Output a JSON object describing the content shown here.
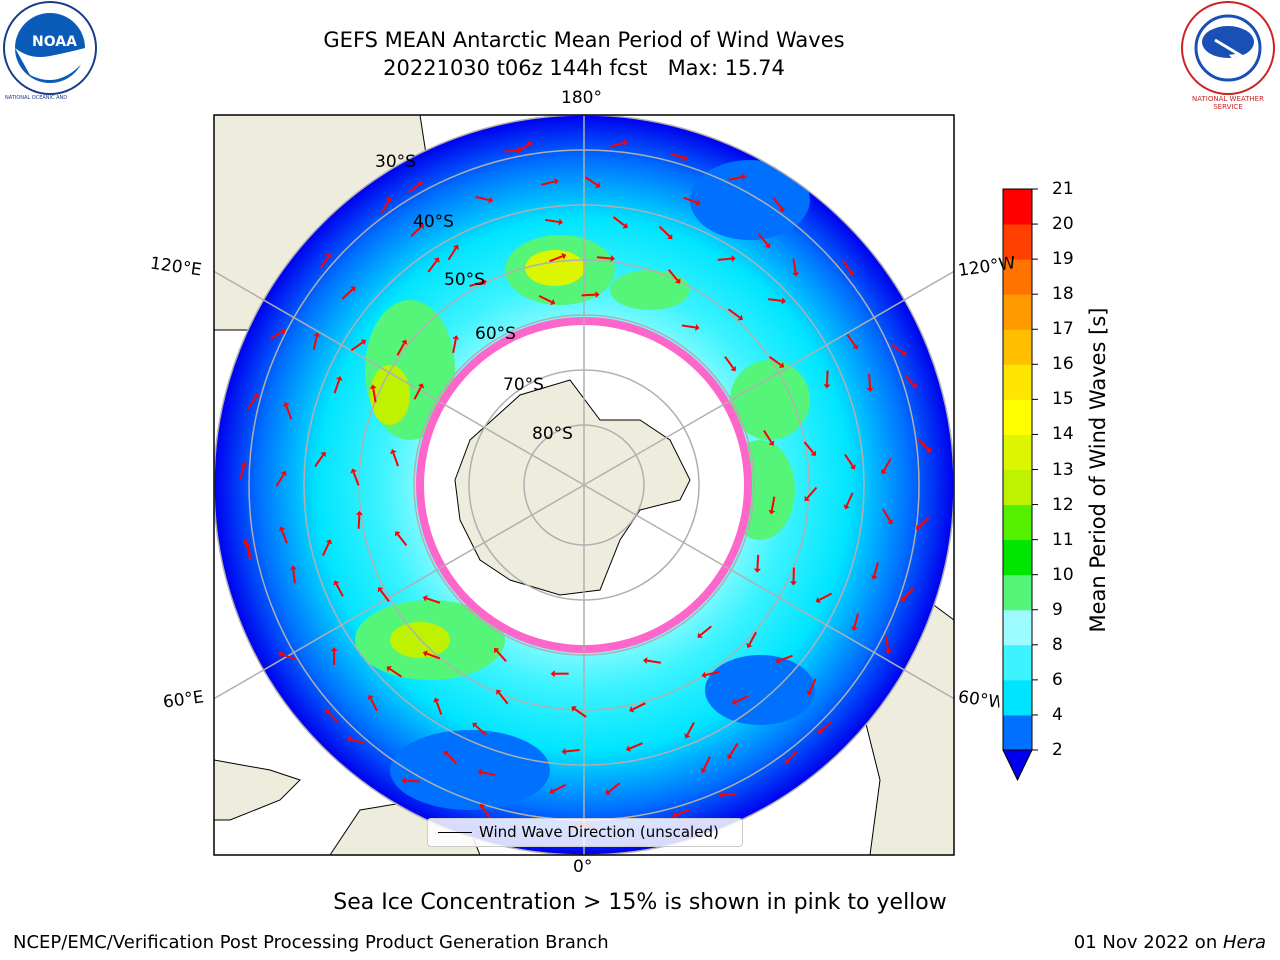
{
  "header": {
    "title_line1": "GEFS MEAN Antarctic Mean Period of Wind Waves",
    "title_line2": "20221030 t06z 144h fcst   Max: 15.74"
  },
  "logos": {
    "noaa_text": "NOAA",
    "noaa_ring_text": "NATIONAL OCEANIC AND ATMOSPHERIC ADMINISTRATION · U.S. DEPARTMENT OF COMMERCE",
    "nws_ring_text": "NATIONAL WEATHER SERVICE"
  },
  "map": {
    "lon_labels": {
      "top": "180°",
      "bottom": "0°",
      "upper_left": "120°E",
      "upper_right": "120°W",
      "lower_left": "60°E",
      "lower_right": "60°W"
    },
    "lat_labels": [
      "30°S",
      "40°S",
      "50°S",
      "60°S",
      "70°S",
      "80°S"
    ],
    "legend_label": "Wind Wave Direction (unscaled)",
    "colors": {
      "land": "#eeecdc",
      "ice_interior": "#ffffff",
      "ice_edge": "#ff33cc",
      "arrow": "#ff0000",
      "grid": "#b0b0b0"
    }
  },
  "colorbar": {
    "label": "Mean Period of Wind Waves [s]",
    "ticks": [
      "21",
      "20",
      "19",
      "18",
      "17",
      "16",
      "15",
      "14",
      "13",
      "12",
      "11",
      "10",
      "9",
      "8",
      "6",
      "4",
      "2"
    ],
    "bounds": [
      2,
      4,
      6,
      8,
      9,
      10,
      11,
      12,
      13,
      14,
      15,
      16,
      17,
      18,
      19,
      20,
      21
    ],
    "colors": [
      "#0070ff",
      "#00e5ff",
      "#3cf3ff",
      "#9dfcff",
      "#55f57a",
      "#00e600",
      "#55f000",
      "#bff200",
      "#dcf500",
      "#ffff00",
      "#ffe600",
      "#ffbf00",
      "#ff9900",
      "#ff7300",
      "#ff4000",
      "#ff0000"
    ],
    "under_color": "#0000ee"
  },
  "footer": {
    "ice_note": "Sea Ice Concentration > 15% is shown in pink to yellow",
    "branch": "NCEP/EMC/Verification Post Processing Product Generation Branch",
    "date": "01 Nov 2022 on ",
    "machine": "Hera"
  }
}
